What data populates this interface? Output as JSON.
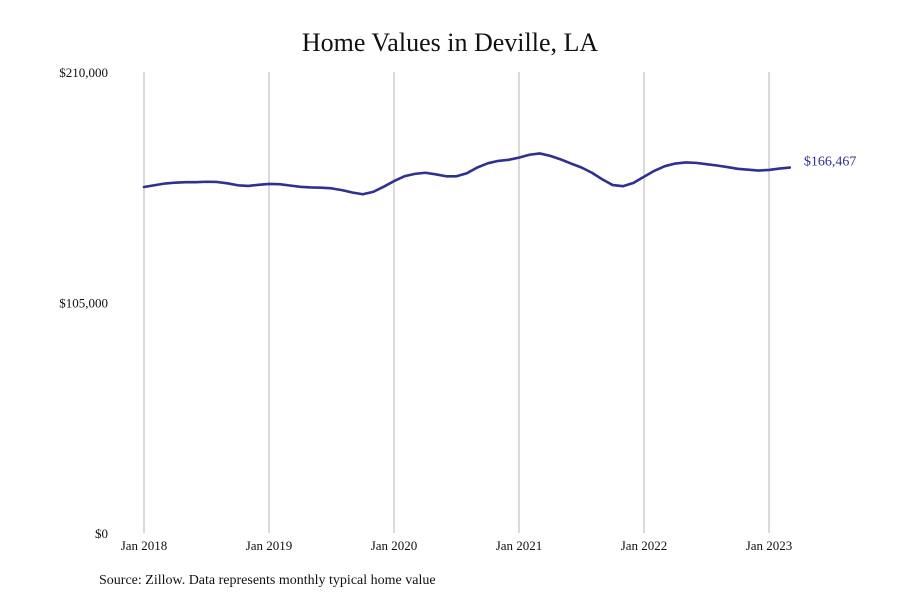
{
  "chart_data": {
    "type": "line",
    "title": "Home Values in Deville, LA",
    "source": "Source: Zillow. Data represents monthly typical home value",
    "ylim": [
      0,
      210000
    ],
    "y_ticks": [
      {
        "value": 0,
        "label": "$0"
      },
      {
        "value": 105000,
        "label": "$105,000"
      },
      {
        "value": 210000,
        "label": "$210,000"
      }
    ],
    "x_ticks": [
      {
        "value": "2018-01",
        "label": "Jan 2018"
      },
      {
        "value": "2019-01",
        "label": "Jan 2019"
      },
      {
        "value": "2020-01",
        "label": "Jan 2020"
      },
      {
        "value": "2021-01",
        "label": "Jan 2021"
      },
      {
        "value": "2022-01",
        "label": "Jan 2022"
      },
      {
        "value": "2023-01",
        "label": "Jan 2023"
      }
    ],
    "grid": "vertical",
    "line_color": "#2e3192",
    "end_label": "$166,467",
    "series": [
      {
        "x": [
          "2018-01",
          "2018-02",
          "2018-03",
          "2018-04",
          "2018-05",
          "2018-06",
          "2018-07",
          "2018-08",
          "2018-09",
          "2018-10",
          "2018-11",
          "2018-12",
          "2019-01",
          "2019-02",
          "2019-03",
          "2019-04",
          "2019-05",
          "2019-06",
          "2019-07",
          "2019-08",
          "2019-09",
          "2019-10",
          "2019-11",
          "2019-12",
          "2020-01",
          "2020-02",
          "2020-03",
          "2020-04",
          "2020-05",
          "2020-06",
          "2020-07",
          "2020-08",
          "2020-09",
          "2020-10",
          "2020-11",
          "2020-12",
          "2021-01",
          "2021-02",
          "2021-03",
          "2021-04",
          "2021-05",
          "2021-06",
          "2021-07",
          "2021-08",
          "2021-09",
          "2021-10",
          "2021-11",
          "2021-12",
          "2022-01",
          "2022-02",
          "2022-03",
          "2022-04",
          "2022-05",
          "2022-06",
          "2022-07",
          "2022-08",
          "2022-09",
          "2022-10",
          "2022-11",
          "2022-12",
          "2023-01",
          "2023-02",
          "2023-03"
        ],
        "values": [
          157600,
          158400,
          159200,
          159600,
          159800,
          159800,
          160000,
          159900,
          159300,
          158400,
          158100,
          158600,
          159000,
          158900,
          158300,
          157700,
          157400,
          157300,
          157000,
          156200,
          155100,
          154300,
          155400,
          157700,
          160300,
          162500,
          163600,
          164100,
          163400,
          162500,
          162500,
          163900,
          166500,
          168400,
          169500,
          170000,
          171000,
          172300,
          172900,
          171800,
          170200,
          168300,
          166500,
          164100,
          161100,
          158500,
          158000,
          159500,
          162300,
          165000,
          167100,
          168300,
          168800,
          168600,
          168000,
          167400,
          166700,
          165900,
          165500,
          165100,
          165400,
          166000,
          166467
        ]
      }
    ]
  }
}
